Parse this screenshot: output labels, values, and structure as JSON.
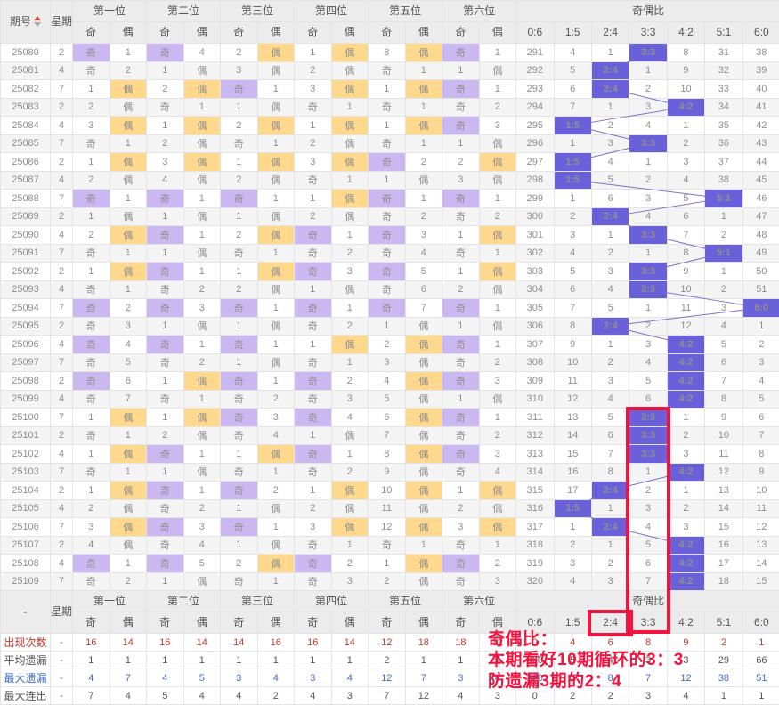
{
  "header": {
    "period_col": "期号",
    "week_col": "星期",
    "positions": [
      "第一位",
      "第二位",
      "第三位",
      "第四位",
      "第五位",
      "第六位"
    ],
    "odd_label": "奇",
    "even_label": "偶",
    "ratio_group": "奇偶比",
    "ratio_cols": [
      "0:6",
      "1:5",
      "2:4",
      "3:3",
      "4:2",
      "5:1",
      "6:0"
    ],
    "sort_icon": "sort-asc-desc-triangles"
  },
  "rows": [
    {
      "id": "25080",
      "week": "2",
      "cells": [
        [
          "奇",
          "1"
        ],
        [
          "奇",
          "4"
        ],
        [
          "2",
          "偶"
        ],
        [
          "1",
          "偶"
        ],
        [
          "8",
          "偶"
        ],
        [
          "奇",
          "1"
        ]
      ],
      "ratio": [
        "291",
        "4",
        "1",
        "3:3",
        "8",
        "31",
        "38"
      ],
      "hit": 3
    },
    {
      "id": "25081",
      "week": "4",
      "cells": [
        [
          "奇",
          "2"
        ],
        [
          "1",
          "偶"
        ],
        [
          "3",
          "偶"
        ],
        [
          "2",
          "偶"
        ],
        [
          "奇",
          "1"
        ],
        [
          "1",
          "偶"
        ]
      ],
      "ratio": [
        "292",
        "5",
        "2:4",
        "1",
        "9",
        "32",
        "39"
      ],
      "hit": 2
    },
    {
      "id": "25082",
      "week": "7",
      "cells": [
        [
          "1",
          "偶"
        ],
        [
          "2",
          "偶"
        ],
        [
          "奇",
          "1"
        ],
        [
          "3",
          "偶"
        ],
        [
          "1",
          "偶"
        ],
        [
          "奇",
          "1"
        ]
      ],
      "ratio": [
        "293",
        "6",
        "2:4",
        "2",
        "10",
        "33",
        "40"
      ],
      "hit": 2
    },
    {
      "id": "25083",
      "week": "2",
      "cells": [
        [
          "2",
          "偶"
        ],
        [
          "奇",
          "1"
        ],
        [
          "1",
          "偶"
        ],
        [
          "奇",
          "1"
        ],
        [
          "奇",
          "1"
        ],
        [
          "奇",
          "2"
        ]
      ],
      "ratio": [
        "294",
        "7",
        "1",
        "3",
        "4:2",
        "34",
        "41"
      ],
      "hit": 4
    },
    {
      "id": "25084",
      "week": "4",
      "cells": [
        [
          "3",
          "偶"
        ],
        [
          "1",
          "偶"
        ],
        [
          "2",
          "偶"
        ],
        [
          "1",
          "偶"
        ],
        [
          "1",
          "偶"
        ],
        [
          "奇",
          "3"
        ]
      ],
      "ratio": [
        "295",
        "1:5",
        "2",
        "4",
        "1",
        "35",
        "42"
      ],
      "hit": 1
    },
    {
      "id": "25085",
      "week": "7",
      "cells": [
        [
          "奇",
          "1"
        ],
        [
          "2",
          "偶"
        ],
        [
          "奇",
          "1"
        ],
        [
          "2",
          "偶"
        ],
        [
          "奇",
          "1"
        ],
        [
          "1",
          "偶"
        ]
      ],
      "ratio": [
        "296",
        "1",
        "3",
        "3:3",
        "2",
        "36",
        "43"
      ],
      "hit": 3
    },
    {
      "id": "25086",
      "week": "2",
      "cells": [
        [
          "1",
          "偶"
        ],
        [
          "3",
          "偶"
        ],
        [
          "1",
          "偶"
        ],
        [
          "3",
          "偶"
        ],
        [
          "奇",
          "2"
        ],
        [
          "2",
          "偶"
        ]
      ],
      "ratio": [
        "297",
        "1:5",
        "4",
        "1",
        "3",
        "37",
        "44"
      ],
      "hit": 1
    },
    {
      "id": "25087",
      "week": "4",
      "cells": [
        [
          "2",
          "偶"
        ],
        [
          "4",
          "偶"
        ],
        [
          "2",
          "偶"
        ],
        [
          "奇",
          "1"
        ],
        [
          "1",
          "偶"
        ],
        [
          "3",
          "偶"
        ]
      ],
      "ratio": [
        "298",
        "1:5",
        "5",
        "2",
        "4",
        "38",
        "45"
      ],
      "hit": 1
    },
    {
      "id": "25088",
      "week": "7",
      "cells": [
        [
          "奇",
          "1"
        ],
        [
          "奇",
          "1"
        ],
        [
          "奇",
          "1"
        ],
        [
          "1",
          "偶"
        ],
        [
          "奇",
          "1"
        ],
        [
          "奇",
          "1"
        ]
      ],
      "ratio": [
        "299",
        "1",
        "6",
        "3",
        "5",
        "5:1",
        "46"
      ],
      "hit": 5
    },
    {
      "id": "25089",
      "week": "2",
      "cells": [
        [
          "1",
          "偶"
        ],
        [
          "1",
          "偶"
        ],
        [
          "1",
          "偶"
        ],
        [
          "2",
          "偶"
        ],
        [
          "奇",
          "2"
        ],
        [
          "奇",
          "2"
        ]
      ],
      "ratio": [
        "300",
        "2",
        "2:4",
        "4",
        "6",
        "1",
        "47"
      ],
      "hit": 2
    },
    {
      "id": "25090",
      "week": "4",
      "cells": [
        [
          "2",
          "偶"
        ],
        [
          "奇",
          "1"
        ],
        [
          "2",
          "偶"
        ],
        [
          "奇",
          "1"
        ],
        [
          "奇",
          "3"
        ],
        [
          "1",
          "偶"
        ]
      ],
      "ratio": [
        "301",
        "3",
        "1",
        "3:3",
        "7",
        "2",
        "48"
      ],
      "hit": 3
    },
    {
      "id": "25091",
      "week": "7",
      "cells": [
        [
          "奇",
          "1"
        ],
        [
          "1",
          "偶"
        ],
        [
          "奇",
          "1"
        ],
        [
          "奇",
          "2"
        ],
        [
          "奇",
          "4"
        ],
        [
          "奇",
          "1"
        ]
      ],
      "ratio": [
        "302",
        "4",
        "2",
        "1",
        "8",
        "5:1",
        "49"
      ],
      "hit": 5
    },
    {
      "id": "25092",
      "week": "2",
      "cells": [
        [
          "1",
          "偶"
        ],
        [
          "奇",
          "1"
        ],
        [
          "1",
          "偶"
        ],
        [
          "奇",
          "3"
        ],
        [
          "奇",
          "5"
        ],
        [
          "1",
          "偶"
        ]
      ],
      "ratio": [
        "303",
        "5",
        "3",
        "3:3",
        "9",
        "1",
        "50"
      ],
      "hit": 3
    },
    {
      "id": "25093",
      "week": "4",
      "cells": [
        [
          "奇",
          "1"
        ],
        [
          "奇",
          "2"
        ],
        [
          "2",
          "偶"
        ],
        [
          "1",
          "偶"
        ],
        [
          "奇",
          "6"
        ],
        [
          "2",
          "偶"
        ]
      ],
      "ratio": [
        "304",
        "6",
        "4",
        "3:3",
        "10",
        "2",
        "51"
      ],
      "hit": 3
    },
    {
      "id": "25094",
      "week": "7",
      "cells": [
        [
          "奇",
          "2"
        ],
        [
          "奇",
          "3"
        ],
        [
          "奇",
          "1"
        ],
        [
          "奇",
          "1"
        ],
        [
          "奇",
          "7"
        ],
        [
          "奇",
          "1"
        ]
      ],
      "ratio": [
        "305",
        "7",
        "5",
        "1",
        "11",
        "3",
        "6:0"
      ],
      "hit": 6
    },
    {
      "id": "25095",
      "week": "2",
      "cells": [
        [
          "奇",
          "3"
        ],
        [
          "1",
          "偶"
        ],
        [
          "1",
          "偶"
        ],
        [
          "奇",
          "2"
        ],
        [
          "1",
          "偶"
        ],
        [
          "1",
          "偶"
        ]
      ],
      "ratio": [
        "306",
        "8",
        "2:4",
        "2",
        "12",
        "4",
        "1"
      ],
      "hit": 2
    },
    {
      "id": "25096",
      "week": "4",
      "cells": [
        [
          "奇",
          "4"
        ],
        [
          "奇",
          "1"
        ],
        [
          "奇",
          "1"
        ],
        [
          "1",
          "偶"
        ],
        [
          "2",
          "偶"
        ],
        [
          "奇",
          "1"
        ]
      ],
      "ratio": [
        "307",
        "9",
        "1",
        "3",
        "4:2",
        "5",
        "2"
      ],
      "hit": 4
    },
    {
      "id": "25097",
      "week": "7",
      "cells": [
        [
          "奇",
          "5"
        ],
        [
          "奇",
          "2"
        ],
        [
          "1",
          "偶"
        ],
        [
          "奇",
          "1"
        ],
        [
          "3",
          "偶"
        ],
        [
          "奇",
          "2"
        ]
      ],
      "ratio": [
        "308",
        "10",
        "2",
        "4",
        "4:2",
        "6",
        "3"
      ],
      "hit": 4
    },
    {
      "id": "25098",
      "week": "2",
      "cells": [
        [
          "奇",
          "6"
        ],
        [
          "1",
          "偶"
        ],
        [
          "奇",
          "1"
        ],
        [
          "奇",
          "2"
        ],
        [
          "4",
          "偶"
        ],
        [
          "奇",
          "3"
        ]
      ],
      "ratio": [
        "309",
        "11",
        "3",
        "5",
        "4:2",
        "7",
        "4"
      ],
      "hit": 4
    },
    {
      "id": "25099",
      "week": "4",
      "cells": [
        [
          "奇",
          "7"
        ],
        [
          "奇",
          "1"
        ],
        [
          "奇",
          "2"
        ],
        [
          "奇",
          "3"
        ],
        [
          "5",
          "偶"
        ],
        [
          "1",
          "偶"
        ]
      ],
      "ratio": [
        "310",
        "12",
        "4",
        "6",
        "4:2",
        "8",
        "5"
      ],
      "hit": 4
    },
    {
      "id": "25100",
      "week": "7",
      "cells": [
        [
          "1",
          "偶"
        ],
        [
          "1",
          "偶"
        ],
        [
          "奇",
          "3"
        ],
        [
          "奇",
          "4"
        ],
        [
          "6",
          "偶"
        ],
        [
          "奇",
          "1"
        ]
      ],
      "ratio": [
        "311",
        "13",
        "5",
        "3:3",
        "1",
        "9",
        "6"
      ],
      "hit": 3
    },
    {
      "id": "25101",
      "week": "2",
      "cells": [
        [
          "奇",
          "1"
        ],
        [
          "2",
          "偶"
        ],
        [
          "奇",
          "4"
        ],
        [
          "1",
          "偶"
        ],
        [
          "7",
          "偶"
        ],
        [
          "奇",
          "2"
        ]
      ],
      "ratio": [
        "312",
        "14",
        "6",
        "3:3",
        "2",
        "10",
        "7"
      ],
      "hit": 3
    },
    {
      "id": "25102",
      "week": "4",
      "cells": [
        [
          "1",
          "偶"
        ],
        [
          "奇",
          "1"
        ],
        [
          "1",
          "偶"
        ],
        [
          "奇",
          "1"
        ],
        [
          "8",
          "偶"
        ],
        [
          "奇",
          "3"
        ]
      ],
      "ratio": [
        "313",
        "15",
        "7",
        "3:3",
        "3",
        "11",
        "8"
      ],
      "hit": 3
    },
    {
      "id": "25103",
      "week": "7",
      "cells": [
        [
          "奇",
          "1"
        ],
        [
          "1",
          "偶"
        ],
        [
          "奇",
          "1"
        ],
        [
          "奇",
          "2"
        ],
        [
          "9",
          "偶"
        ],
        [
          "奇",
          "4"
        ]
      ],
      "ratio": [
        "314",
        "16",
        "8",
        "1",
        "4:2",
        "12",
        "9"
      ],
      "hit": 4
    },
    {
      "id": "25104",
      "week": "2",
      "cells": [
        [
          "1",
          "偶"
        ],
        [
          "奇",
          "1"
        ],
        [
          "奇",
          "2"
        ],
        [
          "1",
          "偶"
        ],
        [
          "10",
          "偶"
        ],
        [
          "1",
          "偶"
        ]
      ],
      "ratio": [
        "315",
        "17",
        "2:4",
        "2",
        "1",
        "13",
        "10"
      ],
      "hit": 2
    },
    {
      "id": "25105",
      "week": "4",
      "cells": [
        [
          "2",
          "偶"
        ],
        [
          "奇",
          "2"
        ],
        [
          "1",
          "偶"
        ],
        [
          "2",
          "偶"
        ],
        [
          "11",
          "偶"
        ],
        [
          "2",
          "偶"
        ]
      ],
      "ratio": [
        "316",
        "1:5",
        "1",
        "3",
        "2",
        "14",
        "11"
      ],
      "hit": 1
    },
    {
      "id": "25106",
      "week": "7",
      "cells": [
        [
          "3",
          "偶"
        ],
        [
          "奇",
          "3"
        ],
        [
          "奇",
          "1"
        ],
        [
          "3",
          "偶"
        ],
        [
          "12",
          "偶"
        ],
        [
          "3",
          "偶"
        ]
      ],
      "ratio": [
        "317",
        "1",
        "2:4",
        "4",
        "3",
        "15",
        "12"
      ],
      "hit": 2
    },
    {
      "id": "25107",
      "week": "2",
      "cells": [
        [
          "4",
          "偶"
        ],
        [
          "奇",
          "4"
        ],
        [
          "1",
          "偶"
        ],
        [
          "奇",
          "1"
        ],
        [
          "奇",
          "1"
        ],
        [
          "奇",
          "1"
        ]
      ],
      "ratio": [
        "318",
        "2",
        "1",
        "5",
        "4:2",
        "16",
        "13"
      ],
      "hit": 4
    },
    {
      "id": "25108",
      "week": "4",
      "cells": [
        [
          "奇",
          "1"
        ],
        [
          "奇",
          "5"
        ],
        [
          "2",
          "偶"
        ],
        [
          "奇",
          "2"
        ],
        [
          "1",
          "偶"
        ],
        [
          "奇",
          "2"
        ]
      ],
      "ratio": [
        "319",
        "3",
        "2",
        "6",
        "4:2",
        "17",
        "14"
      ],
      "hit": 4
    },
    {
      "id": "25109",
      "week": "7",
      "cells": [
        [
          "奇",
          "2"
        ],
        [
          "1",
          "偶"
        ],
        [
          "奇",
          "1"
        ],
        [
          "奇",
          "3"
        ],
        [
          "2",
          "偶"
        ],
        [
          "奇",
          "3"
        ]
      ],
      "ratio": [
        "320",
        "4",
        "3",
        "7",
        "4:2",
        "18",
        "15"
      ],
      "hit": 4
    }
  ],
  "summary": {
    "corner": "-",
    "rows": [
      {
        "label": "出现次数",
        "style": "red",
        "week": "-",
        "cells": [
          [
            "16",
            "14"
          ],
          [
            "16",
            "14"
          ],
          [
            "14",
            "16"
          ],
          [
            "16",
            "14"
          ],
          [
            "12",
            "18"
          ],
          [
            "18",
            "12"
          ]
        ],
        "ratio": [
          "0",
          "4",
          "6",
          "8",
          "9",
          "2",
          "1"
        ]
      },
      {
        "label": "平均遗漏",
        "style": "plain",
        "week": "-",
        "cells": [
          [
            "1",
            "1"
          ],
          [
            "1",
            "1"
          ],
          [
            "1",
            "1"
          ],
          [
            "1",
            "1"
          ],
          [
            "2",
            "1"
          ],
          [
            "1",
            "1"
          ]
        ],
        "ratio": [
          "320",
          "5",
          "4",
          "3",
          "3",
          "29",
          "66"
        ]
      },
      {
        "label": "最大遗漏",
        "style": "blue",
        "week": "-",
        "cells": [
          [
            "4",
            "7"
          ],
          [
            "4",
            "5"
          ],
          [
            "3",
            "4"
          ],
          [
            "3",
            "4"
          ],
          [
            "12",
            "7"
          ],
          [
            "3",
            "4"
          ]
        ],
        "ratio": [
          "320",
          "17",
          "8",
          "7",
          "12",
          "38",
          "51"
        ]
      },
      {
        "label": "最大连出",
        "style": "plain",
        "week": "-",
        "cells": [
          [
            "7",
            "4"
          ],
          [
            "5",
            "4"
          ],
          [
            "4",
            "2"
          ],
          [
            "4",
            "3"
          ],
          [
            "7",
            "12"
          ],
          [
            "4",
            "3"
          ]
        ],
        "ratio": [
          "0",
          "2",
          "2",
          "3",
          "4",
          "1",
          "1"
        ]
      }
    ]
  },
  "annotations": {
    "line1": "奇偶比：",
    "line2": "本期看好10期循环的3：3",
    "line3": "防遗漏3期的2：4",
    "boxed_ratio_column": "3:3",
    "boxed_header_cell": "2:4"
  },
  "colors": {
    "ratio_highlight": "#6a61da",
    "odd_bg": "#ccb8f0",
    "odd_text": "#8a55d4",
    "even_bg": "#fdd88d",
    "even_text": "#ef8a1e",
    "annotation_red": "#f2143f",
    "header_bg": "#ececec",
    "stat_red": "#c0392e",
    "stat_blue": "#3f6cc9",
    "trend_line": "#7b72cf"
  }
}
